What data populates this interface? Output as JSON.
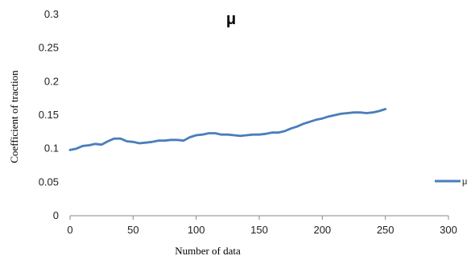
{
  "chart_data": {
    "type": "line",
    "title": "μ",
    "xlabel": "Number of data",
    "ylabel": "Coefficient of traction",
    "xlim": [
      0,
      300
    ],
    "ylim": [
      0,
      0.3
    ],
    "x_ticks": [
      "0",
      "50",
      "100",
      "150",
      "200",
      "250",
      "300"
    ],
    "y_ticks": [
      "0",
      "0.05",
      "0.1",
      "0.15",
      "0.2",
      "0.25",
      "0.3"
    ],
    "grid": false,
    "legend_position": "right",
    "series": [
      {
        "name": "μ",
        "color": "#4a7ebb",
        "x": [
          0,
          5,
          10,
          15,
          20,
          25,
          30,
          35,
          40,
          45,
          50,
          55,
          60,
          65,
          70,
          75,
          80,
          85,
          90,
          95,
          100,
          105,
          110,
          115,
          120,
          125,
          130,
          135,
          140,
          145,
          150,
          155,
          160,
          165,
          170,
          175,
          180,
          185,
          190,
          195,
          200,
          205,
          210,
          215,
          220,
          225,
          230,
          235,
          240,
          245,
          250
        ],
        "values": [
          0.098,
          0.1,
          0.104,
          0.105,
          0.107,
          0.106,
          0.111,
          0.115,
          0.115,
          0.111,
          0.11,
          0.108,
          0.109,
          0.11,
          0.112,
          0.112,
          0.113,
          0.113,
          0.112,
          0.117,
          0.12,
          0.121,
          0.123,
          0.123,
          0.121,
          0.121,
          0.12,
          0.119,
          0.12,
          0.121,
          0.121,
          0.122,
          0.124,
          0.124,
          0.126,
          0.13,
          0.133,
          0.137,
          0.14,
          0.143,
          0.145,
          0.148,
          0.15,
          0.152,
          0.153,
          0.154,
          0.154,
          0.153,
          0.154,
          0.156,
          0.159
        ]
      }
    ]
  }
}
